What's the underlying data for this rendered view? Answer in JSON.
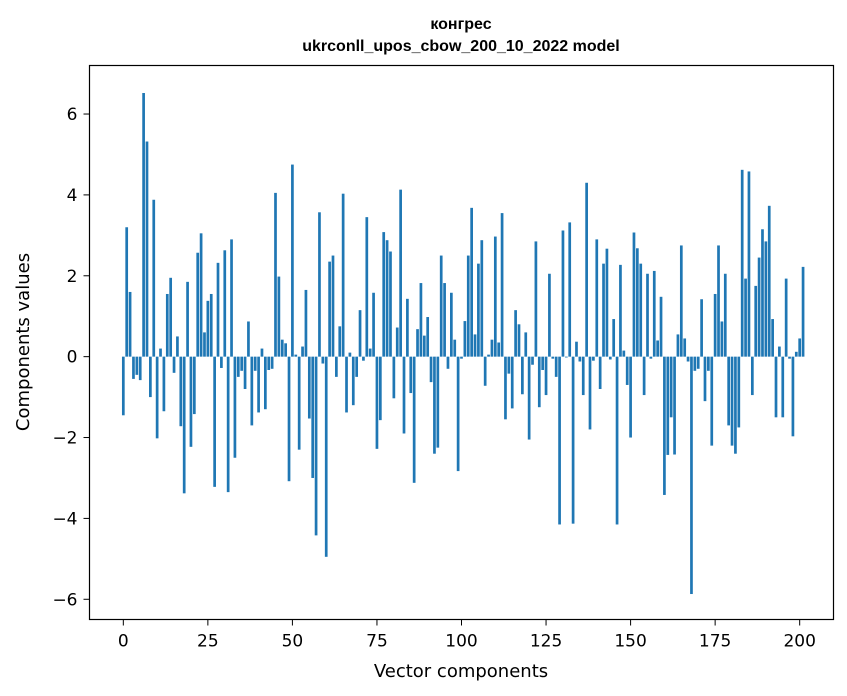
{
  "chart_data": {
    "type": "bar",
    "title": "конгрес",
    "subtitle": "ukrconll_upos_cbow_200_10_2022 model",
    "xlabel": "Vector components",
    "ylabel": "Components values",
    "xlim": [
      -10,
      210
    ],
    "ylim": [
      -6.5,
      7.2
    ],
    "xticks": [
      0,
      25,
      50,
      75,
      100,
      125,
      150,
      175,
      200
    ],
    "yticks": [
      -6,
      -4,
      -2,
      0,
      2,
      4,
      6
    ],
    "ytick_labels": [
      "−6",
      "−4",
      "−2",
      "0",
      "2",
      "4",
      "6"
    ],
    "bar_color": "#1f77b4",
    "grid": false,
    "values": [
      -1.45,
      3.2,
      1.6,
      -0.55,
      -0.45,
      -0.58,
      6.52,
      5.32,
      -1.0,
      3.88,
      -2.02,
      0.2,
      -1.35,
      1.55,
      1.95,
      -0.4,
      0.5,
      -1.72,
      -3.38,
      1.85,
      -2.23,
      -1.42,
      2.57,
      3.05,
      0.6,
      1.38,
      1.55,
      -3.22,
      2.32,
      -0.28,
      2.63,
      -3.35,
      2.9,
      -2.5,
      -0.5,
      -0.35,
      -0.8,
      0.87,
      -1.7,
      -0.35,
      -1.38,
      0.2,
      -1.3,
      -0.33,
      -0.3,
      4.05,
      1.98,
      0.42,
      0.33,
      -3.08,
      4.75,
      0.05,
      -2.3,
      0.25,
      1.65,
      -1.53,
      -3.0,
      -4.42,
      3.57,
      -0.17,
      -4.95,
      2.35,
      2.5,
      -0.5,
      0.75,
      4.03,
      -1.38,
      0.1,
      -1.2,
      -0.5,
      1.15,
      -0.1,
      3.45,
      0.2,
      1.58,
      -2.28,
      -1.57,
      3.08,
      2.88,
      2.6,
      -1.03,
      0.72,
      4.13,
      -1.9,
      1.43,
      -0.9,
      -3.12,
      0.68,
      1.82,
      0.52,
      0.98,
      -0.63,
      -2.4,
      -2.25,
      2.5,
      1.82,
      -0.3,
      1.58,
      0.42,
      -2.83,
      -0.05,
      0.88,
      2.5,
      3.68,
      0.55,
      2.3,
      2.88,
      -0.72,
      0.05,
      0.42,
      2.97,
      0.35,
      3.55,
      -1.55,
      -0.42,
      -1.28,
      1.15,
      0.8,
      -0.93,
      0.6,
      -2.05,
      -0.2,
      2.85,
      -1.25,
      -0.33,
      -0.95,
      2.05,
      -0.05,
      -0.5,
      -4.15,
      3.12,
      -0.02,
      3.32,
      -4.13,
      0.37,
      -0.12,
      -0.95,
      4.3,
      -1.8,
      -0.1,
      2.9,
      -0.8,
      2.3,
      2.67,
      -0.07,
      0.93,
      -4.15,
      2.27,
      0.15,
      -0.7,
      -2.0,
      3.07,
      2.68,
      2.3,
      -0.95,
      2.05,
      -0.05,
      2.12,
      0.4,
      1.48,
      -3.42,
      -2.43,
      -1.5,
      -2.42,
      0.55,
      2.75,
      0.45,
      -0.12,
      -5.87,
      -0.35,
      -0.3,
      1.42,
      -1.1,
      -0.35,
      -2.2,
      1.55,
      2.75,
      0.87,
      2.05,
      -1.7,
      -2.2,
      -2.4,
      -1.75,
      4.62,
      1.93,
      4.58,
      -0.95,
      1.75,
      2.45,
      3.15,
      2.85,
      3.73,
      0.93,
      -1.5,
      0.25,
      -1.5,
      1.93,
      -0.05,
      -1.97,
      0.12,
      0.45,
      2.22
    ]
  }
}
